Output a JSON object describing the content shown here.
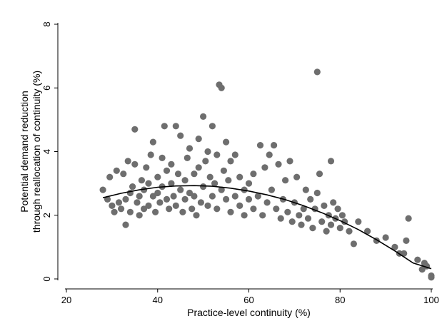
{
  "chart_data": {
    "type": "scatter",
    "xlabel": "Practice-level continuity (%)",
    "ylabel_lines": [
      "Potential demand reduction",
      "through reallocation of continuity (%)"
    ],
    "xlim": [
      20,
      100
    ],
    "ylim": [
      0,
      8
    ],
    "x_ticks": [
      "20",
      "40",
      "60",
      "80",
      "100"
    ],
    "y_ticks": [
      "0",
      "2",
      "4",
      "6",
      "8"
    ],
    "grid": false,
    "legend": "none",
    "colors": {
      "points": "#6e6e6e",
      "fit_line": "#000000",
      "axis": "#000000"
    },
    "series": [
      {
        "values": [
          [
            28,
            2.8
          ],
          [
            29,
            2.5
          ],
          [
            29.5,
            3.2
          ],
          [
            30,
            2.3
          ],
          [
            30.5,
            2.1
          ],
          [
            31,
            3.4
          ],
          [
            31.5,
            2.4
          ],
          [
            32,
            2.2
          ],
          [
            32.5,
            3.3
          ],
          [
            33,
            1.7
          ],
          [
            33,
            2.5
          ],
          [
            33.5,
            3.7
          ],
          [
            34,
            2.7
          ],
          [
            34,
            2.1
          ],
          [
            34.5,
            2.9
          ],
          [
            35,
            3.6
          ],
          [
            35,
            4.7
          ],
          [
            35.5,
            2.4
          ],
          [
            36,
            2.0
          ],
          [
            36,
            2.6
          ],
          [
            36.5,
            3.1
          ],
          [
            37,
            2.8
          ],
          [
            37,
            2.2
          ],
          [
            37.5,
            3.5
          ],
          [
            38,
            3.0
          ],
          [
            38,
            2.3
          ],
          [
            38.5,
            3.9
          ],
          [
            39,
            2.6
          ],
          [
            39,
            4.3
          ],
          [
            39.5,
            2.1
          ],
          [
            40,
            3.2
          ],
          [
            40,
            2.7
          ],
          [
            40.5,
            2.4
          ],
          [
            41,
            3.8
          ],
          [
            41,
            2.9
          ],
          [
            41.5,
            4.8
          ],
          [
            42,
            2.5
          ],
          [
            42,
            3.4
          ],
          [
            42.5,
            2.2
          ],
          [
            43,
            3.0
          ],
          [
            43,
            3.6
          ],
          [
            43.5,
            2.6
          ],
          [
            44,
            4.8
          ],
          [
            44,
            2.3
          ],
          [
            44.5,
            3.3
          ],
          [
            45,
            2.8
          ],
          [
            45,
            4.5
          ],
          [
            45.5,
            2.1
          ],
          [
            46,
            3.1
          ],
          [
            46,
            2.5
          ],
          [
            46.5,
            3.8
          ],
          [
            47,
            2.7
          ],
          [
            47,
            4.1
          ],
          [
            47.5,
            2.2
          ],
          [
            48,
            3.3
          ],
          [
            48,
            2.6
          ],
          [
            48.5,
            2.0
          ],
          [
            49,
            3.5
          ],
          [
            49,
            4.4
          ],
          [
            49.5,
            2.4
          ],
          [
            50,
            5.1
          ],
          [
            50,
            2.9
          ],
          [
            50.5,
            3.7
          ],
          [
            51,
            2.3
          ],
          [
            51,
            4.0
          ],
          [
            51.5,
            3.2
          ],
          [
            52,
            4.8
          ],
          [
            52,
            2.6
          ],
          [
            52.5,
            3.0
          ],
          [
            53,
            2.2
          ],
          [
            53,
            3.9
          ],
          [
            53.5,
            6.1
          ],
          [
            54,
            6.0
          ],
          [
            54,
            2.8
          ],
          [
            54.5,
            3.4
          ],
          [
            55,
            2.5
          ],
          [
            55,
            4.3
          ],
          [
            55.5,
            3.1
          ],
          [
            56,
            2.1
          ],
          [
            56,
            3.7
          ],
          [
            57,
            2.6
          ],
          [
            57,
            3.9
          ],
          [
            58,
            2.3
          ],
          [
            58,
            3.2
          ],
          [
            59,
            2.8
          ],
          [
            59,
            2.0
          ],
          [
            60,
            3.0
          ],
          [
            60,
            2.5
          ],
          [
            61,
            2.2
          ],
          [
            61,
            3.3
          ],
          [
            62,
            2.6
          ],
          [
            62.5,
            4.2
          ],
          [
            63,
            2.0
          ],
          [
            63.5,
            3.5
          ],
          [
            64,
            2.4
          ],
          [
            64.5,
            3.9
          ],
          [
            65,
            2.8
          ],
          [
            65.5,
            4.2
          ],
          [
            66,
            2.2
          ],
          [
            66.5,
            3.6
          ],
          [
            67,
            1.9
          ],
          [
            67.5,
            2.5
          ],
          [
            68,
            3.1
          ],
          [
            68.5,
            2.1
          ],
          [
            69,
            3.7
          ],
          [
            69.5,
            1.8
          ],
          [
            70,
            2.4
          ],
          [
            70.5,
            3.2
          ],
          [
            71,
            2.0
          ],
          [
            71.5,
            1.7
          ],
          [
            72,
            2.2
          ],
          [
            72.5,
            2.8
          ],
          [
            73,
            1.9
          ],
          [
            73.5,
            2.5
          ],
          [
            74,
            1.6
          ],
          [
            74.5,
            2.2
          ],
          [
            75,
            6.5
          ],
          [
            75,
            2.7
          ],
          [
            75.5,
            3.3
          ],
          [
            76,
            1.8
          ],
          [
            76.5,
            2.3
          ],
          [
            77,
            1.5
          ],
          [
            77.5,
            2.0
          ],
          [
            78,
            3.7
          ],
          [
            78,
            1.7
          ],
          [
            78.5,
            2.4
          ],
          [
            79,
            1.9
          ],
          [
            79.5,
            2.2
          ],
          [
            80,
            1.6
          ],
          [
            80.5,
            2.0
          ],
          [
            81,
            1.8
          ],
          [
            82,
            1.5
          ],
          [
            83,
            1.1
          ],
          [
            84,
            1.8
          ],
          [
            86,
            1.5
          ],
          [
            88,
            1.2
          ],
          [
            90,
            1.3
          ],
          [
            92,
            1.0
          ],
          [
            93,
            0.8
          ],
          [
            94,
            0.8
          ],
          [
            94.5,
            1.2
          ],
          [
            95,
            1.9
          ],
          [
            97,
            0.6
          ],
          [
            98,
            0.3
          ],
          [
            98.5,
            0.5
          ],
          [
            99,
            0.4
          ],
          [
            100,
            0.1
          ],
          [
            100,
            0.05
          ]
        ]
      }
    ],
    "fit_curve": {
      "x": [
        28,
        32,
        36,
        40,
        44,
        48,
        52,
        56,
        60,
        64,
        68,
        72,
        76,
        80,
        84,
        88,
        92,
        96,
        100
      ],
      "y": [
        2.55,
        2.69,
        2.8,
        2.88,
        2.92,
        2.93,
        2.91,
        2.85,
        2.76,
        2.64,
        2.49,
        2.3,
        2.08,
        1.83,
        1.55,
        1.23,
        0.88,
        0.5,
        0.32
      ]
    }
  }
}
